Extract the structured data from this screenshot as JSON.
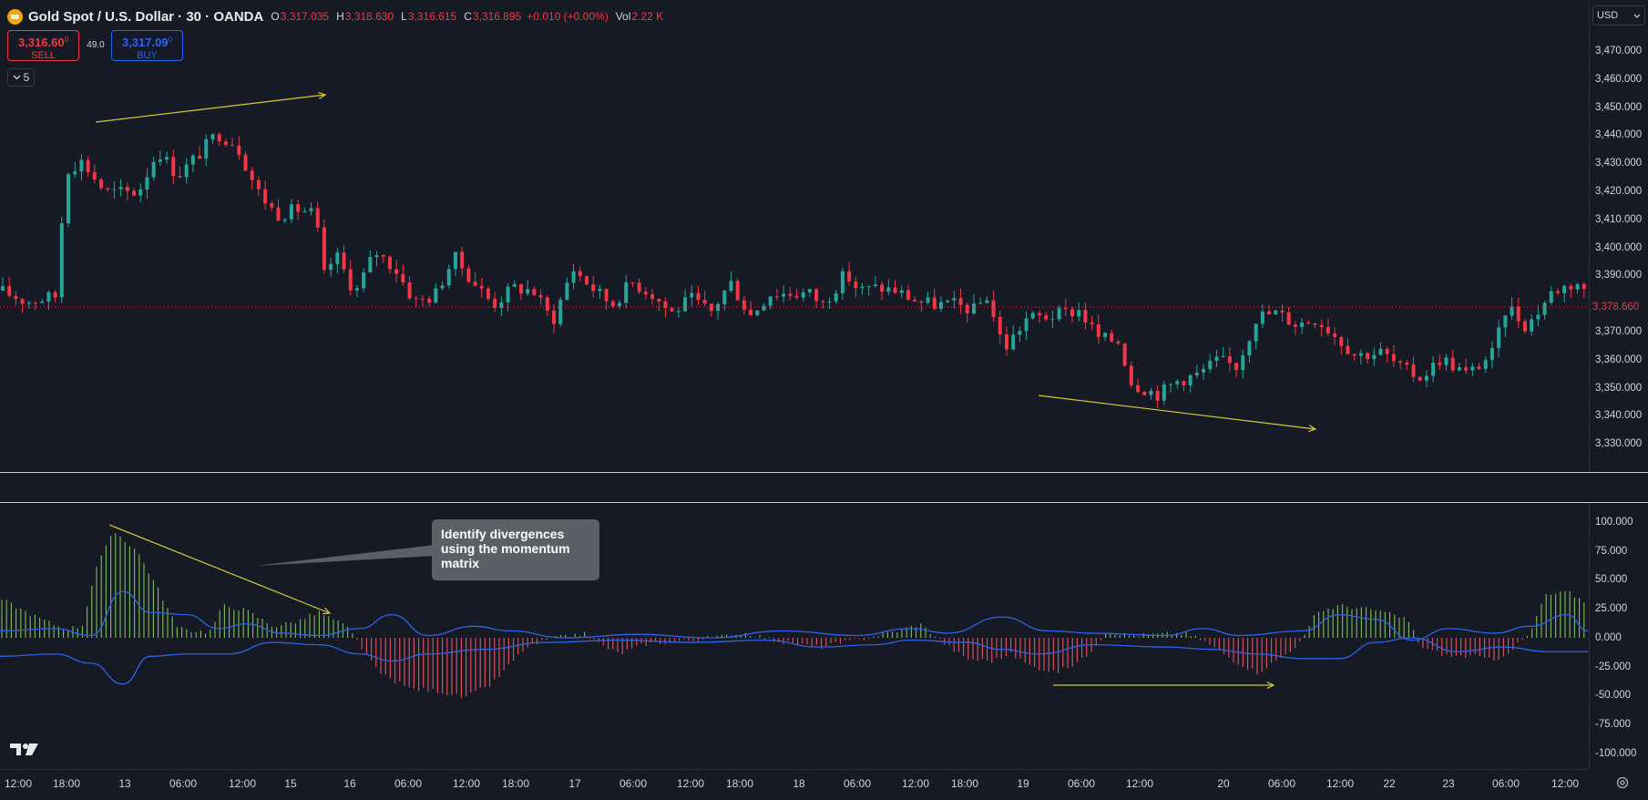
{
  "legend": {
    "symbol": "Gold Spot / U.S. Dollar · 30 · OANDA",
    "open_key": "O",
    "open": "3,317.035",
    "high_key": "H",
    "high": "3,318.630",
    "low_key": "L",
    "low": "3,316.615",
    "close_key": "C",
    "close": "3,316.895",
    "change": "+0.010 (+0.00%)",
    "vol_key": "Vol",
    "vol": "2.22 K"
  },
  "trade": {
    "sell_price": "3,316.60",
    "sell_sup": "0",
    "sell_label": "SELL",
    "spread": "49.0",
    "buy_price": "3,317.09",
    "buy_sup": "0",
    "buy_label": "BUY"
  },
  "indicators_count": "5",
  "currency": "USD",
  "price_axis": [
    "3,470.000",
    "3,460.000",
    "3,450.000",
    "3,440.000",
    "3,430.000",
    "3,420.000",
    "3,410.000",
    "3,400.000",
    "3,390.000",
    "3,370.000",
    "3,360.000",
    "3,350.000",
    "3,340.000",
    "3,330.000"
  ],
  "last_price": "3,378.660",
  "indicator_axis": [
    "100.000",
    "75.000",
    "50.000",
    "25.000",
    "0.000",
    "-25.000",
    "-50.000",
    "-75.000",
    "-100.000"
  ],
  "time_axis": [
    "12:00",
    "18:00",
    "13",
    "06:00",
    "12:00",
    "15",
    "16",
    "06:00",
    "12:00",
    "18:00",
    "17",
    "06:00",
    "12:00",
    "18:00",
    "18",
    "06:00",
    "12:00",
    "18:00",
    "19",
    "06:00",
    "12:00",
    "20",
    "06:00",
    "12:00",
    "22",
    "23",
    "06:00",
    "12:00"
  ],
  "callout_text": "Identify divergences using the momentum matrix",
  "colors": {
    "up": "#26a69a",
    "down": "#f23645",
    "annotation": "#d4cb3a",
    "signal": "#2e62e8",
    "hist_up": "#7fbf5a",
    "hist_down": "#e8525f"
  },
  "icons": {
    "symbol": "gold-coin-icon",
    "collapse": "chevron-down-icon",
    "currency": "chevron-down-icon",
    "logo": "tradingview-logo-icon",
    "settings": "gear-icon"
  }
}
